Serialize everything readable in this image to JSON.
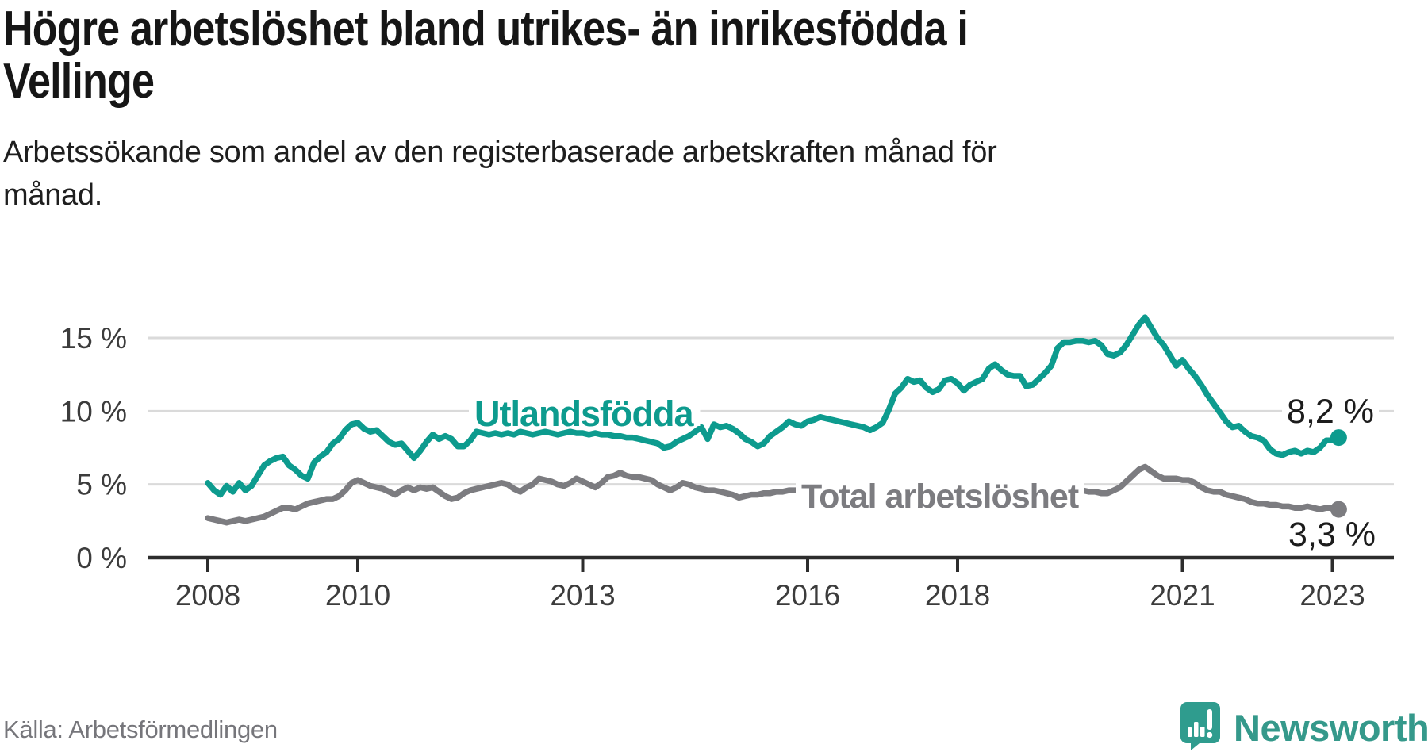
{
  "header": {
    "title": "Högre arbetslöshet bland utrikes- än inrikesfödda i\nVellinge",
    "subtitle": "Arbetssökande som andel av den registerbaserade arbetskraften månad för\nmånad."
  },
  "footer": {
    "source": "Källa: Arbetsförmedlingen",
    "logo_text": "Newsworthy",
    "logo_icon": "newsworthy-speech-bubble-barchart-icon"
  },
  "colors": {
    "accent_teal": "#0d9b8e",
    "line_gray": "#7c7c80",
    "grid": "#dadada",
    "axis": "#2d2d2d",
    "axis_text": "#3c3c3c",
    "value_text": "#1c1c1c",
    "logo_teal": "#2f9c8e",
    "logo_text_teal": "#35998b"
  },
  "chart_data": {
    "type": "line",
    "frequency": "monthly",
    "x_start": "2008-01",
    "x_end": "2023-02",
    "units": "%",
    "ylim": [
      0,
      17.2
    ],
    "grid": "horizontal",
    "axes": {
      "y_ticks": [
        {
          "value": 0,
          "label": "0 %"
        },
        {
          "value": 5,
          "label": "5 %"
        },
        {
          "value": 10,
          "label": "10 %"
        },
        {
          "value": 15,
          "label": "15 %"
        }
      ],
      "x_ticks": [
        {
          "year": 2008,
          "label": "2008"
        },
        {
          "year": 2010,
          "label": "2010"
        },
        {
          "year": 2013,
          "label": "2013"
        },
        {
          "year": 2016,
          "label": "2016"
        },
        {
          "year": 2018,
          "label": "2018"
        },
        {
          "year": 2021,
          "label": "2021"
        },
        {
          "year": 2023,
          "label": "2023"
        }
      ]
    },
    "series": [
      {
        "id": "utlandsfodda",
        "name": "Utlandsfödda",
        "color": "#0d9b8e",
        "end_label": "8,2 %",
        "end_value": 8.2,
        "values": [
          5.1,
          4.6,
          4.3,
          4.9,
          4.5,
          5.1,
          4.6,
          4.9,
          5.6,
          6.3,
          6.6,
          6.8,
          6.9,
          6.3,
          6.0,
          5.6,
          5.4,
          6.5,
          6.9,
          7.2,
          7.8,
          8.1,
          8.7,
          9.1,
          9.2,
          8.8,
          8.6,
          8.7,
          8.3,
          7.9,
          7.7,
          7.8,
          7.3,
          6.8,
          7.3,
          7.9,
          8.4,
          8.1,
          8.3,
          8.1,
          7.6,
          7.6,
          8.0,
          8.6,
          8.5,
          8.4,
          8.5,
          8.4,
          8.5,
          8.4,
          8.6,
          8.5,
          8.4,
          8.5,
          8.6,
          8.5,
          8.4,
          8.5,
          8.6,
          8.5,
          8.5,
          8.4,
          8.5,
          8.4,
          8.4,
          8.3,
          8.3,
          8.2,
          8.2,
          8.1,
          8.0,
          7.9,
          7.8,
          7.5,
          7.6,
          7.9,
          8.1,
          8.3,
          8.6,
          8.9,
          8.1,
          9.1,
          8.9,
          9.0,
          8.8,
          8.5,
          8.1,
          7.9,
          7.6,
          7.8,
          8.3,
          8.6,
          8.9,
          9.3,
          9.1,
          9.0,
          9.3,
          9.4,
          9.6,
          9.5,
          9.4,
          9.3,
          9.2,
          9.1,
          9.0,
          8.9,
          8.7,
          8.9,
          9.2,
          10.1,
          11.2,
          11.6,
          12.2,
          12.0,
          12.1,
          11.6,
          11.3,
          11.5,
          12.1,
          12.2,
          11.9,
          11.4,
          11.8,
          12.0,
          12.2,
          12.9,
          13.2,
          12.8,
          12.5,
          12.4,
          12.4,
          11.7,
          11.8,
          12.2,
          12.6,
          13.1,
          14.3,
          14.7,
          14.7,
          14.8,
          14.8,
          14.7,
          14.8,
          14.5,
          13.9,
          13.8,
          14.0,
          14.5,
          15.2,
          15.9,
          16.4,
          15.7,
          15.0,
          14.5,
          13.8,
          13.1,
          13.5,
          12.9,
          12.4,
          11.8,
          11.1,
          10.5,
          9.9,
          9.3,
          8.9,
          9.0,
          8.6,
          8.3,
          8.2,
          8.0,
          7.4,
          7.1,
          7.0,
          7.2,
          7.3,
          7.1,
          7.3,
          7.2,
          7.5,
          8.0,
          8.0,
          8.2
        ]
      },
      {
        "id": "total",
        "name": "Total arbetslöshet",
        "color": "#7c7c80",
        "end_label": "3,3 %",
        "end_value": 3.3,
        "values": [
          2.7,
          2.6,
          2.5,
          2.4,
          2.5,
          2.6,
          2.5,
          2.6,
          2.7,
          2.8,
          3.0,
          3.2,
          3.4,
          3.4,
          3.3,
          3.5,
          3.7,
          3.8,
          3.9,
          4.0,
          4.0,
          4.2,
          4.6,
          5.1,
          5.3,
          5.1,
          4.9,
          4.8,
          4.7,
          4.5,
          4.3,
          4.6,
          4.8,
          4.6,
          4.8,
          4.7,
          4.8,
          4.5,
          4.2,
          4.0,
          4.1,
          4.4,
          4.6,
          4.7,
          4.8,
          4.9,
          5.0,
          5.1,
          5.0,
          4.7,
          4.5,
          4.8,
          5.0,
          5.4,
          5.3,
          5.2,
          5.0,
          4.9,
          5.1,
          5.4,
          5.2,
          5.0,
          4.8,
          5.1,
          5.5,
          5.6,
          5.8,
          5.6,
          5.5,
          5.5,
          5.4,
          5.3,
          5.0,
          4.8,
          4.6,
          4.8,
          5.1,
          5.0,
          4.8,
          4.7,
          4.6,
          4.6,
          4.5,
          4.4,
          4.3,
          4.1,
          4.2,
          4.3,
          4.3,
          4.4,
          4.4,
          4.5,
          4.5,
          4.6,
          4.6,
          4.6,
          4.6,
          4.7,
          4.7,
          4.6,
          4.6,
          4.5,
          4.5,
          4.6,
          4.6,
          4.7,
          4.7,
          4.8,
          4.8,
          4.9,
          4.8,
          4.7,
          4.6,
          4.5,
          4.5,
          4.6,
          4.7,
          4.7,
          4.8,
          4.8,
          4.8,
          4.9,
          4.8,
          4.7,
          4.7,
          4.6,
          4.5,
          4.6,
          4.6,
          4.7,
          4.8,
          4.8,
          4.8,
          4.9,
          4.9,
          4.8,
          4.8,
          4.7,
          4.7,
          4.6,
          4.6,
          4.5,
          4.5,
          4.4,
          4.4,
          4.6,
          4.8,
          5.2,
          5.6,
          6.0,
          6.2,
          5.9,
          5.6,
          5.4,
          5.4,
          5.4,
          5.3,
          5.3,
          5.1,
          4.8,
          4.6,
          4.5,
          4.5,
          4.3,
          4.2,
          4.1,
          4.0,
          3.8,
          3.7,
          3.7,
          3.6,
          3.6,
          3.5,
          3.5,
          3.4,
          3.4,
          3.5,
          3.4,
          3.3,
          3.4,
          3.4,
          3.3
        ]
      }
    ]
  }
}
